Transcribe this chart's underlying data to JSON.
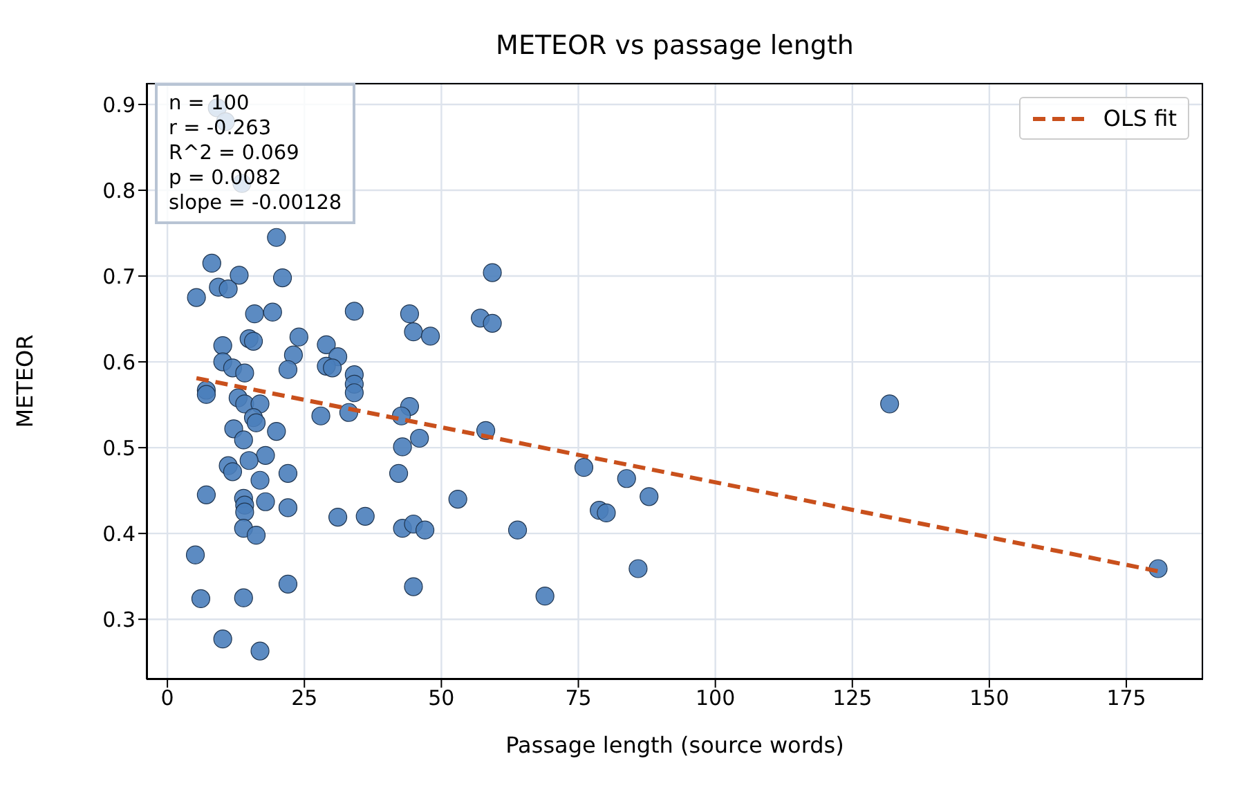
{
  "chart_data": {
    "type": "scatter",
    "title": "METEOR vs passage length",
    "xlabel": "Passage length (source words)",
    "ylabel": "METEOR",
    "xlim": [
      -3.8,
      189
    ],
    "xticks": [
      0,
      25,
      50,
      75,
      100,
      125,
      150,
      175
    ],
    "ylim": [
      0.23,
      0.925
    ],
    "yticks": [
      0.3,
      0.4,
      0.5,
      0.6,
      0.7,
      0.8,
      0.9
    ],
    "grid": true,
    "legend": "top right",
    "annotations": [
      "n = 100",
      "r = -0.263",
      "R^2 = 0.069",
      "p = 0.0082",
      "slope = -0.00128"
    ],
    "series": [
      {
        "type": "scatter",
        "color": "#4a7ebb",
        "marker": "circle",
        "x": [
          9.1,
          10.6,
          13.6,
          15.7,
          19.9,
          8.1,
          5.3,
          9.3,
          11.1,
          13.1,
          21.0,
          15.9,
          19.2,
          34.1,
          59.3,
          57.1,
          59.3,
          44.2,
          44.9,
          48.0,
          14.9,
          15.7,
          24.0,
          10.1,
          23.0,
          29.0,
          31.1,
          10.1,
          11.9,
          14.1,
          29.0,
          30.1,
          22.0,
          34.1,
          34.1,
          34.1,
          7.1,
          7.1,
          44.2,
          42.7,
          12.9,
          14.1,
          16.9,
          15.7,
          16.2,
          28.0,
          33.1,
          131.8,
          58.1,
          12.1,
          13.9,
          19.9,
          46.0,
          42.9,
          17.9,
          14.9,
          11.1,
          11.9,
          22.0,
          42.2,
          16.9,
          76.0,
          83.8,
          87.9,
          53.0,
          7.1,
          13.9,
          14.1,
          14.1,
          17.9,
          22.0,
          78.8,
          80.1,
          31.1,
          36.1,
          42.9,
          44.9,
          47.0,
          63.9,
          13.9,
          16.2,
          5.1,
          22.0,
          44.9,
          6.1,
          13.9,
          10.1,
          16.9,
          68.9,
          85.9,
          180.8
        ],
        "values": [
          0.896,
          0.88,
          0.808,
          null,
          0.745,
          0.715,
          0.675,
          0.687,
          0.685,
          0.701,
          0.698,
          0.656,
          0.658,
          0.659,
          0.704,
          0.651,
          0.645,
          0.656,
          0.635,
          0.63,
          0.627,
          0.624,
          0.629,
          0.619,
          0.608,
          0.62,
          0.606,
          0.6,
          0.593,
          0.587,
          0.595,
          0.593,
          0.591,
          0.585,
          0.574,
          0.564,
          0.567,
          0.562,
          0.548,
          0.537,
          0.558,
          0.551,
          0.551,
          0.535,
          0.529,
          0.537,
          0.541,
          0.551,
          0.52,
          0.522,
          0.509,
          0.519,
          0.511,
          0.501,
          0.491,
          0.485,
          0.479,
          0.472,
          0.47,
          0.47,
          0.462,
          0.477,
          0.464,
          0.443,
          0.44,
          0.445,
          0.441,
          0.433,
          0.425,
          0.437,
          0.43,
          0.427,
          0.424,
          0.419,
          0.42,
          0.406,
          0.411,
          0.404,
          0.404,
          0.406,
          0.398,
          0.375,
          0.341,
          0.338,
          0.324,
          0.325,
          0.277,
          0.263,
          0.327,
          0.359,
          0.359
        ]
      },
      {
        "type": "line",
        "name": "OLS fit",
        "color": "#c9501c",
        "marker": "none",
        "line_style": "dashed",
        "x": [
          5.3,
          180.8
        ],
        "values": [
          0.581,
          0.356
        ]
      }
    ]
  }
}
